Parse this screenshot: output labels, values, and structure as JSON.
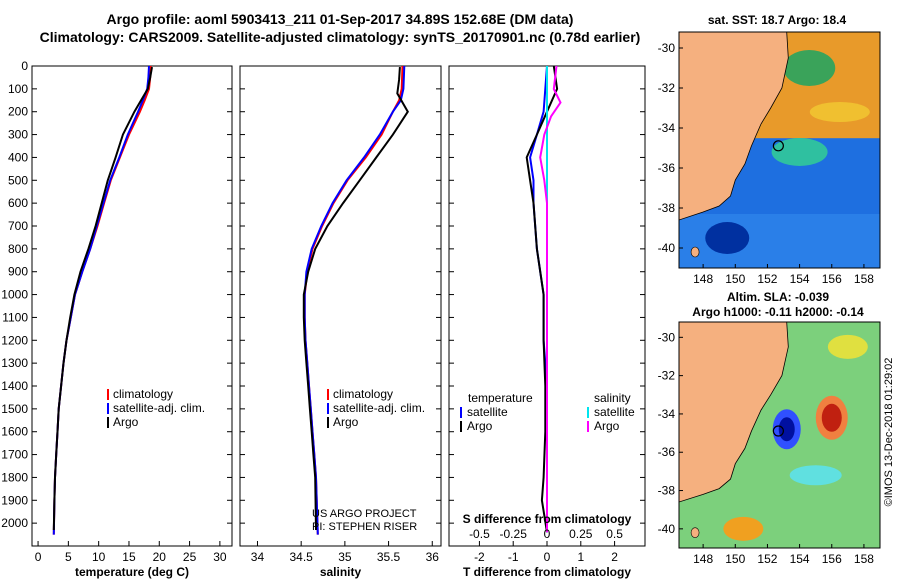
{
  "header": {
    "line1": "Argo profile: aoml 5903413_211 01-Sep-2017 34.89S 152.68E (DM data)",
    "line2": "Climatology: CARS2009. Satellite-adjusted climatology: synTS_20170901.nc (0.78d earlier)"
  },
  "colors": {
    "climatology": "#ff0000",
    "satellite_adj": "#0000ff",
    "argo": "#000000",
    "salinity_sat": "#00e5ee",
    "salinity_argo": "#ff00ff",
    "land": "#f5b07f"
  },
  "chart_data": [
    {
      "type": "line",
      "id": "temperature",
      "xlabel": "temperature (deg C)",
      "ylabel": "",
      "xlim": [
        -1,
        32
      ],
      "ylim": [
        2100,
        0
      ],
      "xticks": [
        0,
        5,
        10,
        15,
        20,
        25,
        30
      ],
      "yticks": [
        0,
        100,
        200,
        300,
        400,
        500,
        600,
        700,
        800,
        900,
        1000,
        1100,
        1200,
        1300,
        1400,
        1500,
        1600,
        1700,
        1800,
        1900,
        2000
      ],
      "legend": [
        "climatology",
        "satellite-adj. clim.",
        "Argo"
      ],
      "series": [
        {
          "name": "climatology",
          "color": "#ff0000",
          "x": [
            18.6,
            18.5,
            18.3,
            17.6,
            16.8,
            15.0,
            13.5,
            12.0,
            10.9,
            9.8,
            8.6,
            7.3,
            6.1,
            5.4,
            4.7,
            4.2,
            3.8,
            3.4,
            3.2,
            3.0,
            2.8,
            2.7,
            2.6
          ],
          "y": [
            0,
            50,
            100,
            150,
            200,
            300,
            400,
            500,
            600,
            700,
            800,
            900,
            1000,
            1100,
            1200,
            1300,
            1400,
            1500,
            1600,
            1700,
            1800,
            1900,
            2050
          ]
        },
        {
          "name": "satellite-adj. clim.",
          "color": "#0000ff",
          "x": [
            18.3,
            18.2,
            18.0,
            17.3,
            16.5,
            14.8,
            13.4,
            11.9,
            10.8,
            9.7,
            8.6,
            7.3,
            6.1,
            5.4,
            4.7,
            4.2,
            3.8,
            3.4,
            3.2,
            3.0,
            2.8,
            2.7,
            2.6
          ],
          "y": [
            0,
            50,
            100,
            150,
            200,
            300,
            400,
            500,
            600,
            700,
            800,
            900,
            1000,
            1100,
            1200,
            1300,
            1400,
            1500,
            1600,
            1700,
            1800,
            1900,
            2050
          ]
        },
        {
          "name": "Argo",
          "color": "#000000",
          "x": [
            18.8,
            18.5,
            18.1,
            17.0,
            15.9,
            14.0,
            12.8,
            11.5,
            10.5,
            9.5,
            8.3,
            7.0,
            6.0,
            5.3,
            4.7,
            4.2,
            3.8,
            3.4,
            3.2,
            3.0,
            2.8,
            2.7,
            2.6
          ],
          "y": [
            5,
            50,
            100,
            150,
            200,
            300,
            400,
            500,
            600,
            700,
            800,
            900,
            1000,
            1100,
            1200,
            1300,
            1400,
            1500,
            1600,
            1700,
            1800,
            1900,
            2030
          ]
        }
      ]
    },
    {
      "type": "line",
      "id": "salinity",
      "xlabel": "salinity",
      "xlim": [
        33.8,
        36.1
      ],
      "ylim": [
        2100,
        0
      ],
      "xticks": [
        34,
        34.5,
        35,
        35.5,
        36
      ],
      "legend": [
        "climatology",
        "satellite-adj. clim.",
        "Argo"
      ],
      "credit": [
        "US ARGO PROJECT",
        "PI: STEPHEN RISER"
      ],
      "series": [
        {
          "name": "climatology",
          "color": "#ff0000",
          "x": [
            35.66,
            35.65,
            35.62,
            35.55,
            35.42,
            35.24,
            35.03,
            34.87,
            34.74,
            34.63,
            34.57,
            34.54,
            34.54,
            34.55,
            34.57,
            34.59,
            34.61,
            34.63,
            34.65,
            34.67,
            34.69
          ],
          "y": [
            0,
            100,
            150,
            200,
            300,
            400,
            500,
            600,
            700,
            800,
            900,
            1000,
            1100,
            1200,
            1300,
            1400,
            1500,
            1600,
            1700,
            1800,
            2050
          ]
        },
        {
          "name": "satellite-adj. clim.",
          "color": "#0000ff",
          "x": [
            35.68,
            35.67,
            35.64,
            35.55,
            35.4,
            35.22,
            35.02,
            34.86,
            34.73,
            34.62,
            34.56,
            34.54,
            34.54,
            34.55,
            34.57,
            34.59,
            34.61,
            34.63,
            34.65,
            34.67,
            34.69
          ],
          "y": [
            0,
            100,
            150,
            200,
            300,
            400,
            500,
            600,
            700,
            800,
            900,
            1000,
            1100,
            1200,
            1300,
            1400,
            1500,
            1600,
            1700,
            1800,
            2050
          ]
        },
        {
          "name": "Argo",
          "color": "#000000",
          "x": [
            35.63,
            35.62,
            35.6,
            35.72,
            35.55,
            35.36,
            35.17,
            34.98,
            34.8,
            34.66,
            34.58,
            34.53,
            34.53,
            34.54,
            34.56,
            34.58,
            34.6,
            34.62,
            34.64,
            34.66,
            34.67
          ],
          "y": [
            5,
            60,
            120,
            200,
            300,
            400,
            500,
            600,
            700,
            800,
            900,
            1000,
            1100,
            1200,
            1300,
            1400,
            1500,
            1600,
            1700,
            1800,
            2030
          ]
        }
      ]
    },
    {
      "type": "line",
      "id": "difference",
      "xlabel": "T difference from climatology",
      "xlabel2": "S difference from climatology",
      "xlim": [
        -2.9,
        2.9
      ],
      "ylim": [
        2100,
        0
      ],
      "xticks": [
        -2,
        -1,
        0,
        1,
        2
      ],
      "xticklabels": [
        "-2",
        "-1",
        "0",
        "1",
        "2"
      ],
      "xticks2": [
        -0.5,
        -0.25,
        0,
        0.25,
        0.5
      ],
      "xticklabels2": [
        "-0.5",
        "-0.25",
        "0",
        "0.25",
        "0.5"
      ],
      "legend_left": {
        "title": "temperature",
        "items": [
          "satellite",
          "Argo"
        ]
      },
      "legend_right": {
        "title": "salinity",
        "items": [
          "satellite",
          "Argo"
        ]
      },
      "series": [
        {
          "name": "temperature satellite",
          "color": "#0000ff",
          "x": [
            0.0,
            -0.05,
            -0.1,
            -0.3,
            -0.5,
            -0.4,
            -0.4,
            -0.3,
            -0.1,
            -0.1,
            0.0,
            0.0,
            0.0,
            0.0,
            0.0
          ],
          "y": [
            0,
            100,
            200,
            300,
            400,
            500,
            600,
            800,
            1000,
            1200,
            1400,
            1600,
            1800,
            1900,
            2040
          ]
        },
        {
          "name": "temperature Argo",
          "color": "#000000",
          "x": [
            0.2,
            0.3,
            0.0,
            -0.3,
            -0.6,
            -0.5,
            -0.4,
            -0.3,
            -0.1,
            -0.1,
            -0.05,
            -0.05,
            -0.1,
            -0.15,
            0.0
          ],
          "y": [
            0,
            100,
            200,
            300,
            400,
            500,
            600,
            800,
            1000,
            1200,
            1400,
            1600,
            1800,
            1900,
            2040
          ]
        },
        {
          "name": "salinity satellite",
          "color": "#00e5ee",
          "x": [
            0.0,
            0.0,
            0.0,
            0.0,
            0.0,
            0.0,
            0.0,
            0.0,
            0.0,
            0.0,
            0.0
          ],
          "y": [
            0,
            200,
            400,
            600,
            800,
            1000,
            1200,
            1400,
            1600,
            1800,
            2040
          ]
        },
        {
          "name": "salinity Argo",
          "color": "#ff00ff",
          "x": [
            0.07,
            0.05,
            0.1,
            0.03,
            -0.02,
            -0.05,
            -0.02,
            0.0,
            0.0,
            0.0,
            0.0,
            0.0,
            0.0,
            0.0
          ],
          "y": [
            0,
            100,
            160,
            220,
            300,
            400,
            500,
            600,
            800,
            1000,
            1200,
            1400,
            1600,
            2040
          ]
        }
      ]
    },
    {
      "type": "heatmap",
      "id": "sst_map",
      "title": "sat. SST: 18.7 Argo: 18.4",
      "xlim": [
        146.5,
        159
      ],
      "ylim": [
        -41,
        -29.2
      ],
      "xticks": [
        148,
        150,
        152,
        154,
        156,
        158
      ],
      "yticks": [
        -30,
        -32,
        -34,
        -36,
        -38,
        -40
      ],
      "argo_position": {
        "lon": 152.68,
        "lat": -34.89
      }
    },
    {
      "type": "heatmap",
      "id": "sla_map",
      "title": "Altim. SLA: -0.039",
      "subtitle": "Argo h1000: -0.11 h2000: -0.14",
      "xlim": [
        146.5,
        159
      ],
      "ylim": [
        -41,
        -29.2
      ],
      "xticks": [
        148,
        150,
        152,
        154,
        156,
        158
      ],
      "yticks": [
        -30,
        -32,
        -34,
        -36,
        -38,
        -40
      ],
      "argo_position": {
        "lon": 152.68,
        "lat": -34.89
      }
    }
  ],
  "footer": {
    "stamp": "©IMOS 13-Dec-2018 01:29:02"
  }
}
